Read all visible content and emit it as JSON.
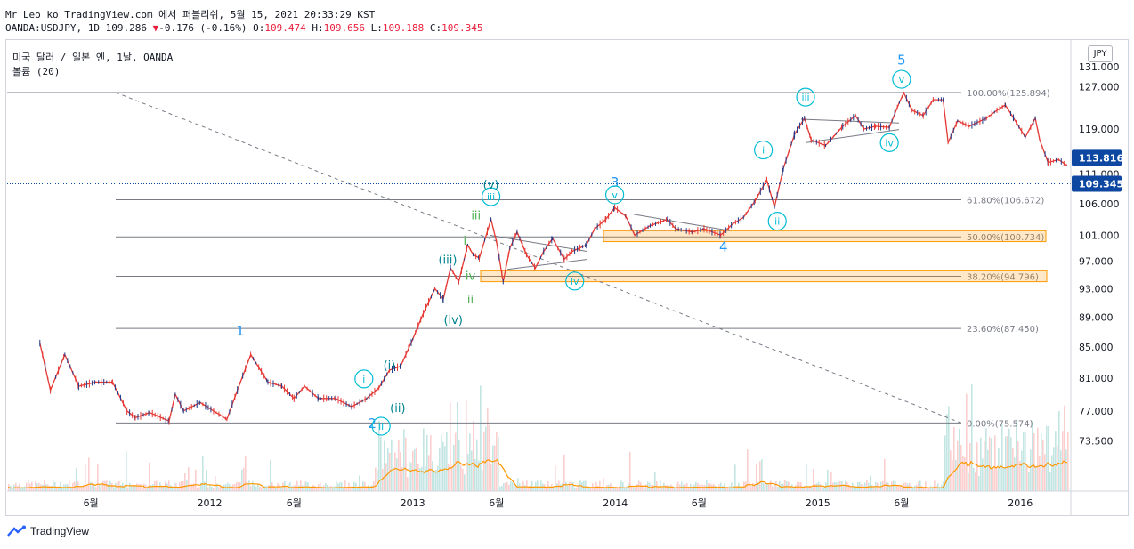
{
  "header": {
    "line1": "Mr_Leo_ko TradingView.com 에서 퍼블리쉬, 5월 15, 2021 20:33:29 KST",
    "line2_prefix": "OANDA:USDJPY, 1D 109.286",
    "change_arrow": "▼",
    "change": "-0.176 (-0.16%)",
    "o_label": "O:",
    "o_value": "109.474",
    "h_label": "H:",
    "h_value": "109.656",
    "l_label": "L:",
    "l_value": "109.188",
    "c_label": "C:",
    "c_value": "109.345"
  },
  "legend": {
    "symbol": "미국 달러 / 일본 엔, 1날, OANDA",
    "volume": "볼륨 (20)"
  },
  "currency_label": "JPY",
  "footer": {
    "brand": "TradingView"
  },
  "colors": {
    "up": "#26a69a",
    "down": "#ef5350",
    "price_line": "#e53935",
    "volume_ma": "#ff9800",
    "fib_zone": "#ff9800",
    "wave_cyan": "#00bcd4",
    "wave_green": "#4caf50",
    "wave_blue": "#2196f3",
    "price_label_bg": "#0d47a1"
  },
  "chart_data": {
    "type": "line",
    "title": "미국 달러 / 일본 엔, 1날, OANDA",
    "y_axis": {
      "ticks": [
        "131.000",
        "127.000",
        "119.000",
        "111.000",
        "106.000",
        "101.000",
        "97.000",
        "93.000",
        "89.000",
        "85.000",
        "81.000",
        "77.000",
        "73.500"
      ],
      "range": [
        70.5,
        133
      ]
    },
    "x_axis": {
      "ticks": [
        "6월",
        "2012",
        "6월",
        "2013",
        "6월",
        "2014",
        "6월",
        "2015",
        "6월",
        "2016"
      ],
      "range": [
        "2011-01",
        "2016-04"
      ]
    },
    "series": [
      {
        "values": [
          [
            "2011-03-01",
            85.5
          ],
          [
            "2011-03-20",
            79.5
          ],
          [
            "2011-04-15",
            84
          ],
          [
            "2011-05-10",
            80
          ],
          [
            "2011-06-10",
            80.5
          ],
          [
            "2011-07-10",
            80.5
          ],
          [
            "2011-08-05",
            77
          ],
          [
            "2011-08-20",
            76.2
          ],
          [
            "2011-09-15",
            76.8
          ],
          [
            "2011-10-20",
            75.8
          ],
          [
            "2011-10-31",
            79
          ],
          [
            "2011-11-15",
            77
          ],
          [
            "2011-12-15",
            78
          ],
          [
            "2012-01-20",
            76.5
          ],
          [
            "2012-02-01",
            76
          ],
          [
            "2012-02-20",
            79.5
          ],
          [
            "2012-03-15",
            84
          ],
          [
            "2012-04-15",
            80.5
          ],
          [
            "2012-05-10",
            80
          ],
          [
            "2012-06-01",
            78.5
          ],
          [
            "2012-06-20",
            80
          ],
          [
            "2012-07-15",
            78.5
          ],
          [
            "2012-08-15",
            78.5
          ],
          [
            "2012-09-13",
            77.5
          ],
          [
            "2012-10-10",
            78.5
          ],
          [
            "2012-11-01",
            79.8
          ],
          [
            "2012-11-20",
            82
          ],
          [
            "2012-12-10",
            82.5
          ],
          [
            "2013-01-01",
            86
          ],
          [
            "2013-01-20",
            89.5
          ],
          [
            "2013-02-10",
            93
          ],
          [
            "2013-02-25",
            91.5
          ],
          [
            "2013-03-10",
            96
          ],
          [
            "2013-03-25",
            94
          ],
          [
            "2013-04-10",
            99.5
          ],
          [
            "2013-04-20",
            98
          ],
          [
            "2013-05-01",
            97.5
          ],
          [
            "2013-05-22",
            103.5
          ],
          [
            "2013-06-01",
            100
          ],
          [
            "2013-06-13",
            94
          ],
          [
            "2013-06-25",
            99
          ],
          [
            "2013-07-08",
            101.5
          ],
          [
            "2013-07-25",
            98
          ],
          [
            "2013-08-10",
            96
          ],
          [
            "2013-08-25",
            98.5
          ],
          [
            "2013-09-10",
            100.5
          ],
          [
            "2013-10-01",
            97.3
          ],
          [
            "2013-10-15",
            98.5
          ],
          [
            "2013-11-10",
            99.5
          ],
          [
            "2013-11-25",
            102
          ],
          [
            "2013-12-15",
            103.5
          ],
          [
            "2013-12-31",
            105.4
          ],
          [
            "2014-01-20",
            104
          ],
          [
            "2014-02-05",
            101
          ],
          [
            "2014-03-05",
            102.5
          ],
          [
            "2014-04-05",
            103.5
          ],
          [
            "2014-04-20",
            102
          ],
          [
            "2014-05-20",
            101.5
          ],
          [
            "2014-06-10",
            102
          ],
          [
            "2014-07-10",
            101
          ],
          [
            "2014-08-01",
            102.8
          ],
          [
            "2014-08-20",
            103.8
          ],
          [
            "2014-09-10",
            106.5
          ],
          [
            "2014-10-01",
            110
          ],
          [
            "2014-10-15",
            105.5
          ],
          [
            "2014-10-31",
            112
          ],
          [
            "2014-11-20",
            118
          ],
          [
            "2014-12-08",
            121
          ],
          [
            "2014-12-20",
            117
          ],
          [
            "2015-01-15",
            116
          ],
          [
            "2015-02-15",
            119.5
          ],
          [
            "2015-03-10",
            121.5
          ],
          [
            "2015-03-25",
            119
          ],
          [
            "2015-04-15",
            119.5
          ],
          [
            "2015-05-10",
            119.3
          ],
          [
            "2015-05-28",
            124
          ],
          [
            "2015-06-05",
            125.8
          ],
          [
            "2015-06-20",
            122.5
          ],
          [
            "2015-07-10",
            121.5
          ],
          [
            "2015-07-28",
            124.5
          ],
          [
            "2015-08-15",
            124.5
          ],
          [
            "2015-08-24",
            116.5
          ],
          [
            "2015-09-10",
            120.5
          ],
          [
            "2015-10-01",
            119.5
          ],
          [
            "2015-11-01",
            121
          ],
          [
            "2015-11-20",
            122.5
          ],
          [
            "2015-12-05",
            123.5
          ],
          [
            "2015-12-20",
            121
          ],
          [
            "2016-01-10",
            117.5
          ],
          [
            "2016-01-28",
            121
          ],
          [
            "2016-02-05",
            117
          ],
          [
            "2016-02-20",
            113
          ],
          [
            "2016-03-10",
            113.5
          ],
          [
            "2016-03-25",
            112.5
          ]
        ]
      }
    ],
    "horizontal_levels": [
      {
        "label": "100.00%(125.894)",
        "value": 125.894
      },
      {
        "label": "61.80%(106.672)",
        "value": 106.672
      },
      {
        "label": "50.00%(100.734)",
        "value": 100.734
      },
      {
        "label": "38.20%(94.796)",
        "value": 94.796
      },
      {
        "label": "23.60%(87.450)",
        "value": 87.45
      },
      {
        "label": "0.00%(75.574)",
        "value": 75.574
      }
    ],
    "price_labels": [
      {
        "text": "113.816",
        "value": 113.816
      },
      {
        "text": "109.345",
        "value": 109.345
      }
    ],
    "wave_labels": [
      {
        "text": "1",
        "x": "2012-02-25",
        "y": 86.5,
        "style": "blue"
      },
      {
        "text": "2",
        "x": "2012-10-20",
        "y": 75.0,
        "style": "blue"
      },
      {
        "text": "3",
        "x": "2013-12-31",
        "y": 108.8,
        "style": "blue"
      },
      {
        "text": "4",
        "x": "2014-07-15",
        "y": 98.5,
        "style": "blue"
      },
      {
        "text": "5",
        "x": "2015-06-01",
        "y": 131.5,
        "style": "blue"
      },
      {
        "text": "i",
        "x": "2012-10-05",
        "y": 80.9,
        "style": "circle"
      },
      {
        "text": "ii",
        "x": "2012-11-05",
        "y": 75.2,
        "style": "circle"
      },
      {
        "text": "iii",
        "x": "2013-05-22",
        "y": 107.2,
        "style": "circle"
      },
      {
        "text": "(v)",
        "x": "2013-05-22",
        "y": 108.5,
        "style": "cyan"
      },
      {
        "text": "iv",
        "x": "2013-10-20",
        "y": 94.1,
        "style": "circle"
      },
      {
        "text": "v",
        "x": "2013-12-31",
        "y": 107.5,
        "style": "circle"
      },
      {
        "text": "i",
        "x": "2014-09-25",
        "y": 115.2,
        "style": "circle"
      },
      {
        "text": "ii",
        "x": "2014-10-20",
        "y": 103.2,
        "style": "circle"
      },
      {
        "text": "iii",
        "x": "2014-12-10",
        "y": 125.0,
        "style": "circle"
      },
      {
        "text": "iv",
        "x": "2015-05-10",
        "y": 116.5,
        "style": "circle"
      },
      {
        "text": "v",
        "x": "2015-06-01",
        "y": 128.5,
        "style": "circle"
      },
      {
        "text": "(i)",
        "x": "2012-11-20",
        "y": 82.1,
        "style": "cyan"
      },
      {
        "text": "(ii)",
        "x": "2012-12-05",
        "y": 76.9,
        "style": "cyan"
      },
      {
        "text": "(iii)",
        "x": "2013-03-05",
        "y": 96.6,
        "style": "cyan"
      },
      {
        "text": "(iv)",
        "x": "2013-03-15",
        "y": 88.1,
        "style": "cyan"
      },
      {
        "text": "iii",
        "x": "2013-04-25",
        "y": 103.5,
        "style": "green"
      },
      {
        "text": "i",
        "x": "2013-04-05",
        "y": 99.5,
        "style": "green"
      },
      {
        "text": "iv",
        "x": "2013-04-15",
        "y": 94.3,
        "style": "green"
      },
      {
        "text": "ii",
        "x": "2013-04-15",
        "y": 90.9,
        "style": "green"
      }
    ]
  }
}
